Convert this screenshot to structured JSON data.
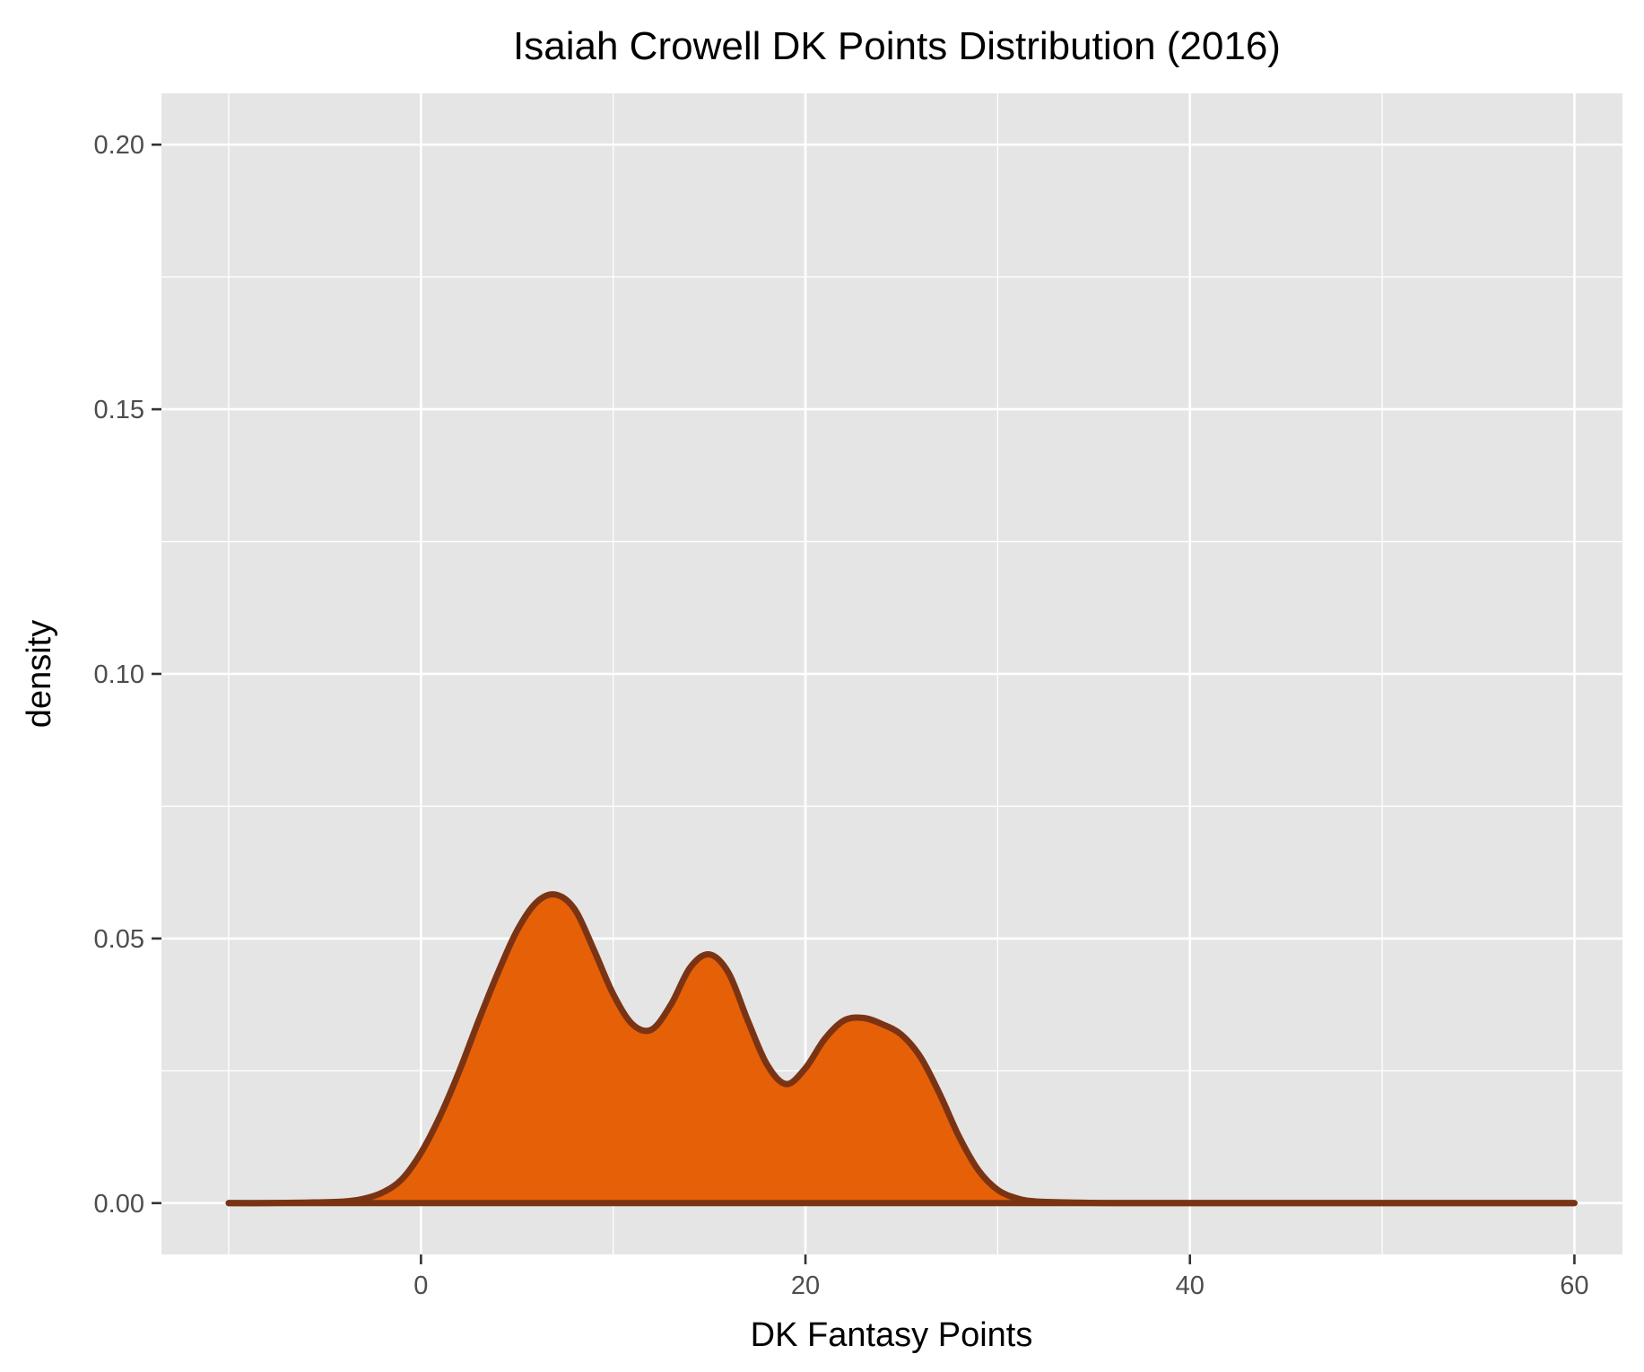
{
  "chart_data": {
    "type": "area",
    "title": "Isaiah Crowell DK Points Distribution (2016)",
    "xlabel": "DK Fantasy Points",
    "ylabel": "density",
    "xlim": [
      -13.5,
      62.5
    ],
    "ylim": [
      -0.0097,
      0.2097
    ],
    "x_ticks": [
      0,
      20,
      40,
      60
    ],
    "x_tick_labels": [
      "0",
      "20",
      "40",
      "60"
    ],
    "y_ticks": [
      0.0,
      0.05,
      0.1,
      0.15,
      0.2
    ],
    "y_tick_labels": [
      "0.00",
      "0.05",
      "0.10",
      "0.15",
      "0.20"
    ],
    "grid": true,
    "colors": {
      "panel_background": "#e5e5e5",
      "grid_line": "#ffffff",
      "fill": "#e66007",
      "outline": "#7a3414",
      "tick": "#333333"
    },
    "series": [
      {
        "x": [
          -10,
          -8,
          -6,
          -4,
          -3,
          -2,
          -1,
          0,
          1,
          2,
          3,
          4,
          5,
          6,
          7,
          8,
          9,
          10,
          11,
          12,
          13,
          14,
          15,
          16,
          17,
          18,
          19,
          20,
          21,
          22,
          23,
          24,
          25,
          26,
          27,
          28,
          29,
          30,
          31,
          32,
          34,
          36,
          40,
          45,
          50,
          55,
          60
        ],
        "y": [
          0.0,
          0.0,
          0.0001,
          0.0003,
          0.0008,
          0.002,
          0.0045,
          0.0095,
          0.0165,
          0.025,
          0.0345,
          0.0435,
          0.0515,
          0.0568,
          0.0583,
          0.0555,
          0.0478,
          0.0395,
          0.0338,
          0.0328,
          0.0375,
          0.0445,
          0.047,
          0.0435,
          0.0345,
          0.0262,
          0.0225,
          0.0255,
          0.031,
          0.0345,
          0.035,
          0.0338,
          0.0318,
          0.0275,
          0.0205,
          0.0125,
          0.0062,
          0.0025,
          0.0009,
          0.0003,
          0.0001,
          0.0,
          0.0,
          0.0,
          0.0,
          0.0,
          0.0
        ]
      }
    ]
  }
}
